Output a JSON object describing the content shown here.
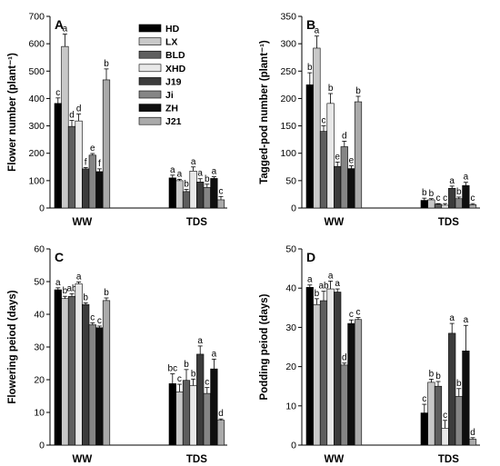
{
  "legend": {
    "entries": [
      "HD",
      "LX",
      "BLD",
      "XHD",
      "J19",
      "Ji",
      "ZH",
      "J21"
    ],
    "colors": [
      "#000000",
      "#c8c8c8",
      "#5e5e5e",
      "#e8e8e8",
      "#3c3c3c",
      "#858585",
      "#0f0f0f",
      "#aaaaaa"
    ]
  },
  "chart_data": [
    {
      "type": "bar",
      "panel": "A",
      "ylabel": "Flower number (plant⁻¹)",
      "categories": [
        "WW",
        "TDS"
      ],
      "ylim": [
        0,
        700
      ],
      "yticks": [
        0,
        100,
        200,
        300,
        400,
        500,
        600,
        700
      ],
      "series": [
        {
          "name": "HD",
          "values": [
            382,
            110
          ],
          "errors": [
            20,
            10
          ],
          "letters": [
            "c",
            "a"
          ]
        },
        {
          "name": "LX",
          "values": [
            590,
            100
          ],
          "errors": [
            45,
            5
          ],
          "letters": [
            "a",
            "a"
          ]
        },
        {
          "name": "BLD",
          "values": [
            298,
            60
          ],
          "errors": [
            22,
            8
          ],
          "letters": [
            "d",
            "b"
          ]
        },
        {
          "name": "XHD",
          "values": [
            318,
            135
          ],
          "errors": [
            25,
            15
          ],
          "letters": [
            "d",
            "a"
          ]
        },
        {
          "name": "J19",
          "values": [
            143,
            95
          ],
          "errors": [
            5,
            12
          ],
          "letters": [
            "f",
            "a"
          ]
        },
        {
          "name": "Ji",
          "values": [
            193,
            75
          ],
          "errors": [
            6,
            12
          ],
          "letters": [
            "e",
            "b"
          ]
        },
        {
          "name": "ZH",
          "values": [
            133,
            108
          ],
          "errors": [
            10,
            6
          ],
          "letters": [
            "f",
            "a"
          ]
        },
        {
          "name": "J21",
          "values": [
            468,
            30
          ],
          "errors": [
            40,
            12
          ],
          "letters": [
            "b",
            "c"
          ]
        }
      ]
    },
    {
      "type": "bar",
      "panel": "B",
      "ylabel": "Tagged-pod number (plant⁻¹)",
      "categories": [
        "WW",
        "TDS"
      ],
      "ylim": [
        0,
        350
      ],
      "yticks": [
        0,
        50,
        100,
        150,
        200,
        250,
        300,
        350
      ],
      "series": [
        {
          "name": "HD",
          "values": [
            225,
            14
          ],
          "errors": [
            22,
            4
          ],
          "letters": [
            "b",
            "b"
          ]
        },
        {
          "name": "LX",
          "values": [
            292,
            15
          ],
          "errors": [
            22,
            2
          ],
          "letters": [
            "a",
            "b"
          ]
        },
        {
          "name": "BLD",
          "values": [
            140,
            7
          ],
          "errors": [
            10,
            1
          ],
          "letters": [
            "c",
            "c"
          ]
        },
        {
          "name": "XHD",
          "values": [
            191,
            5
          ],
          "errors": [
            18,
            3
          ],
          "letters": [
            "b",
            "c"
          ]
        },
        {
          "name": "J19",
          "values": [
            76,
            36
          ],
          "errors": [
            8,
            4
          ],
          "letters": [
            "e",
            "a"
          ]
        },
        {
          "name": "Ji",
          "values": [
            112,
            17
          ],
          "errors": [
            10,
            3
          ],
          "letters": [
            "d",
            "b"
          ]
        },
        {
          "name": "ZH",
          "values": [
            72,
            41
          ],
          "errors": [
            5,
            6
          ],
          "letters": [
            "e",
            "a"
          ]
        },
        {
          "name": "J21",
          "values": [
            194,
            6
          ],
          "errors": [
            10,
            2
          ],
          "letters": [
            "b",
            "c"
          ]
        }
      ]
    },
    {
      "type": "bar",
      "panel": "C",
      "ylabel": "Flowering peiod (days)",
      "categories": [
        "WW",
        "TDS"
      ],
      "ylim": [
        0,
        60
      ],
      "yticks": [
        0,
        10,
        20,
        30,
        40,
        50,
        60
      ],
      "series": [
        {
          "name": "HD",
          "values": [
            47.5,
            18.8
          ],
          "errors": [
            0.6,
            3.0
          ],
          "letters": [
            "a",
            "bc"
          ]
        },
        {
          "name": "LX",
          "values": [
            44.8,
            16.3
          ],
          "errors": [
            0.7,
            2.3
          ],
          "letters": [
            "b",
            "c"
          ]
        },
        {
          "name": "BLD",
          "values": [
            45.5,
            19.8
          ],
          "errors": [
            0.8,
            3.3
          ],
          "letters": [
            "ab",
            "b"
          ]
        },
        {
          "name": "XHD",
          "values": [
            49.3,
            18.2
          ],
          "errors": [
            0.6,
            2.0
          ],
          "letters": [
            "a",
            "b"
          ]
        },
        {
          "name": "J19",
          "values": [
            43.0,
            27.8
          ],
          "errors": [
            0.5,
            2.5
          ],
          "letters": [
            "b",
            "a"
          ]
        },
        {
          "name": "Ji",
          "values": [
            36.8,
            15.8
          ],
          "errors": [
            0.6,
            1.8
          ],
          "letters": [
            "c",
            "c"
          ]
        },
        {
          "name": "ZH",
          "values": [
            35.9,
            23.3
          ],
          "errors": [
            0.5,
            3.0
          ],
          "letters": [
            "c",
            "a"
          ]
        },
        {
          "name": "J21",
          "values": [
            44.2,
            7.6
          ],
          "errors": [
            0.8,
            0.4
          ],
          "letters": [
            "b",
            "d"
          ]
        }
      ]
    },
    {
      "type": "bar",
      "panel": "D",
      "ylabel": "Podding peiod (days)",
      "categories": [
        "WW",
        "TDS"
      ],
      "ylim": [
        0,
        50
      ],
      "yticks": [
        0,
        10,
        20,
        30,
        40,
        50
      ],
      "series": [
        {
          "name": "HD",
          "values": [
            40.2,
            8.2
          ],
          "errors": [
            0.6,
            2.2
          ],
          "letters": [
            "a",
            "c"
          ]
        },
        {
          "name": "LX",
          "values": [
            35.8,
            16.0
          ],
          "errors": [
            1.5,
            0.8
          ],
          "letters": [
            "b",
            "b"
          ]
        },
        {
          "name": "BLD",
          "values": [
            36.8,
            15.0
          ],
          "errors": [
            2.4,
            1.2
          ],
          "letters": [
            "ab",
            "b"
          ]
        },
        {
          "name": "XHD",
          "values": [
            39.8,
            4.3
          ],
          "errors": [
            2.0,
            2.0
          ],
          "letters": [
            "a",
            "c"
          ]
        },
        {
          "name": "J19",
          "values": [
            39.0,
            28.5
          ],
          "errors": [
            0.8,
            2.5
          ],
          "letters": [
            "a",
            "a"
          ]
        },
        {
          "name": "Ji",
          "values": [
            20.4,
            12.4
          ],
          "errors": [
            0.5,
            2.0
          ],
          "letters": [
            "d",
            "b"
          ]
        },
        {
          "name": "ZH",
          "values": [
            31.0,
            24.0
          ],
          "errors": [
            0.9,
            6.5
          ],
          "letters": [
            "c",
            "a"
          ]
        },
        {
          "name": "J21",
          "values": [
            32.0,
            1.5
          ],
          "errors": [
            0.5,
            0.4
          ],
          "letters": [
            "c",
            "d"
          ]
        }
      ]
    }
  ]
}
